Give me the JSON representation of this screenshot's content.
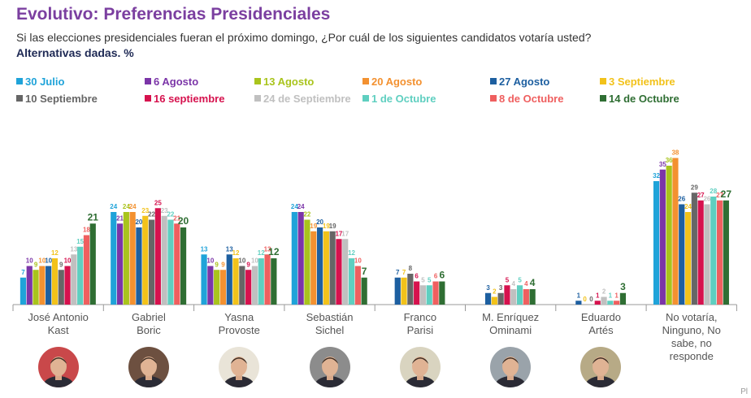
{
  "header": {
    "title": "Evolutivo: Preferencias Presidenciales",
    "subtitle": "Si las elecciones presidenciales fueran el próximo domingo, ¿Por cuál de los siguientes candidatos votaría usted?",
    "subtitle_bold": "Alternativas dadas. %"
  },
  "chart_data": {
    "type": "bar",
    "title": "Evolutivo: Preferencias Presidenciales",
    "legend_position": "top",
    "grid": false,
    "ylim": [
      0,
      40
    ],
    "categories": [
      "José Antonio Kast",
      "Gabriel Boric",
      "Yasna Provoste",
      "Sebastián Sichel",
      "Franco Parisi",
      "M. Enríquez Ominami",
      "Eduardo Artés",
      "No votaría, Ninguno, No sabe, no responde"
    ],
    "series": [
      {
        "name": "30 Julio",
        "color": "#1fa3d9",
        "values": [
          7,
          24,
          13,
          24,
          null,
          null,
          null,
          32
        ]
      },
      {
        "name": "6 Agosto",
        "color": "#7b35a8",
        "values": [
          10,
          21,
          10,
          24,
          null,
          null,
          null,
          35
        ]
      },
      {
        "name": "13 Agosto",
        "color": "#a9c41c",
        "values": [
          9,
          24,
          9,
          22,
          null,
          null,
          null,
          36
        ]
      },
      {
        "name": "20 Agosto",
        "color": "#f39130",
        "values": [
          10,
          24,
          9,
          19,
          null,
          null,
          null,
          38
        ]
      },
      {
        "name": "27 Agosto",
        "color": "#1d5fa0",
        "values": [
          10,
          20,
          13,
          20,
          7,
          3,
          1,
          26
        ]
      },
      {
        "name": "3 Septiembre",
        "color": "#f2c21a",
        "values": [
          12,
          23,
          12,
          19,
          7,
          2,
          0,
          24
        ]
      },
      {
        "name": "10 Septiembre",
        "color": "#666666",
        "values": [
          9,
          22,
          10,
          19,
          8,
          3,
          0,
          29
        ]
      },
      {
        "name": "16 septiembre",
        "color": "#d6124e",
        "values": [
          10,
          25,
          9,
          17,
          6,
          5,
          1,
          27
        ]
      },
      {
        "name": "24 de Septiembre",
        "color": "#c0c0c0",
        "values": [
          13,
          23,
          10,
          17,
          5,
          4,
          2,
          26
        ]
      },
      {
        "name": "1 de Octubre",
        "color": "#5fcfc0",
        "values": [
          15,
          22,
          12,
          12,
          5,
          5,
          1,
          28
        ]
      },
      {
        "name": "8 de Octubre",
        "color": "#ef5f5f",
        "values": [
          18,
          21,
          13,
          10,
          6,
          4,
          1,
          27
        ]
      },
      {
        "name": "14 de Octubre",
        "color": "#2f6e33",
        "values": [
          21,
          20,
          12,
          7,
          6,
          4,
          3,
          27
        ]
      }
    ]
  },
  "candidates": [
    {
      "name": "José Antonio Kast",
      "lines": [
        "José Antonio",
        "Kast"
      ],
      "photo": "portrait-kast"
    },
    {
      "name": "Gabriel Boric",
      "lines": [
        "Gabriel",
        "Boric"
      ],
      "photo": "portrait-boric"
    },
    {
      "name": "Yasna Provoste",
      "lines": [
        "Yasna",
        "Provoste"
      ],
      "photo": "portrait-provoste"
    },
    {
      "name": "Sebastián Sichel",
      "lines": [
        "Sebastián",
        "Sichel"
      ],
      "photo": "portrait-sichel"
    },
    {
      "name": "Franco Parisi",
      "lines": [
        "Franco",
        "Parisi"
      ],
      "photo": "portrait-parisi"
    },
    {
      "name": "M. Enríquez Ominami",
      "lines": [
        "M. Enríquez",
        "Ominami"
      ],
      "photo": "portrait-meo"
    },
    {
      "name": "Eduardo Artés",
      "lines": [
        "Eduardo",
        "Artés"
      ],
      "photo": "portrait-artes"
    },
    {
      "name": "No votaría, Ninguno, No sabe, no responde",
      "lines": [
        "No votaría,",
        "Ninguno, No",
        "sabe, no",
        "responde"
      ],
      "photo": null
    }
  ],
  "footer": {
    "page_mark": "Pl"
  }
}
